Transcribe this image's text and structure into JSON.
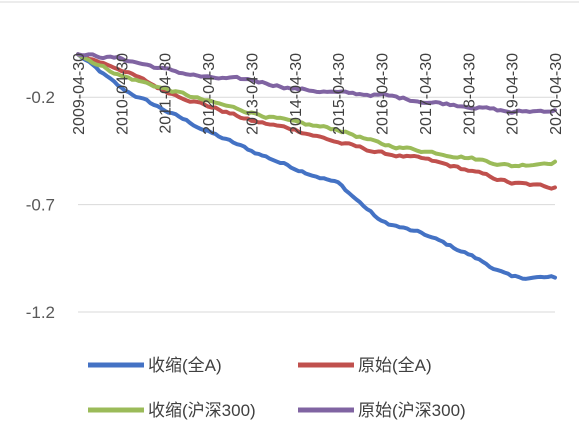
{
  "chart_data": {
    "type": "line",
    "title": "",
    "xlabel": "",
    "ylabel": "",
    "x_ticks": [
      "2009-04-30",
      "2010-04-30",
      "2011-04-30",
      "2012-04-30",
      "2013-04-30",
      "2014-04-30",
      "2015-04-30",
      "2016-04-30",
      "2017-04-30",
      "2018-04-30",
      "2019-04-30",
      "2020-04-30"
    ],
    "y_ticks": [
      -0.2,
      -0.7,
      -1.2
    ],
    "ylim": [
      -1.2,
      0.02
    ],
    "grid": "horizontal",
    "legend_position": "bottom",
    "series": [
      {
        "name": "收缩(全A)",
        "color": "#4472C4",
        "x": [
          "2009-04-30",
          "2010-04-30",
          "2011-04-30",
          "2012-04-30",
          "2013-04-30",
          "2014-04-30",
          "2015-04-30",
          "2016-04-30",
          "2017-04-30",
          "2018-04-30",
          "2019-04-30",
          "2020-04-30"
        ],
        "values": [
          0.0,
          -0.16,
          -0.26,
          -0.36,
          -0.45,
          -0.53,
          -0.6,
          -0.78,
          -0.84,
          -0.93,
          -1.04,
          -1.04
        ]
      },
      {
        "name": "原始(全A)",
        "color": "#C0504D",
        "x": [
          "2009-04-30",
          "2010-04-30",
          "2011-04-30",
          "2012-04-30",
          "2013-04-30",
          "2014-04-30",
          "2015-04-30",
          "2016-04-30",
          "2017-04-30",
          "2018-04-30",
          "2019-04-30",
          "2020-04-30"
        ],
        "values": [
          0.0,
          -0.07,
          -0.17,
          -0.24,
          -0.31,
          -0.35,
          -0.41,
          -0.46,
          -0.49,
          -0.54,
          -0.6,
          -0.62
        ]
      },
      {
        "name": "收缩(沪深300)",
        "color": "#9BBB59",
        "x": [
          "2009-04-30",
          "2010-04-30",
          "2011-04-30",
          "2012-04-30",
          "2013-04-30",
          "2014-04-30",
          "2015-04-30",
          "2016-04-30",
          "2017-04-30",
          "2018-04-30",
          "2019-04-30",
          "2020-04-30"
        ],
        "values": [
          0.0,
          -0.1,
          -0.16,
          -0.22,
          -0.27,
          -0.32,
          -0.35,
          -0.42,
          -0.45,
          -0.48,
          -0.52,
          -0.5
        ]
      },
      {
        "name": "原始(沪深300)",
        "color": "#8064A2",
        "x": [
          "2009-04-30",
          "2010-04-30",
          "2011-04-30",
          "2012-04-30",
          "2013-04-30",
          "2014-04-30",
          "2015-04-30",
          "2016-04-30",
          "2017-04-30",
          "2018-04-30",
          "2019-04-30",
          "2020-04-30"
        ],
        "values": [
          0.0,
          -0.02,
          -0.07,
          -0.11,
          -0.12,
          -0.16,
          -0.18,
          -0.19,
          -0.22,
          -0.24,
          -0.27,
          -0.26
        ]
      }
    ]
  }
}
